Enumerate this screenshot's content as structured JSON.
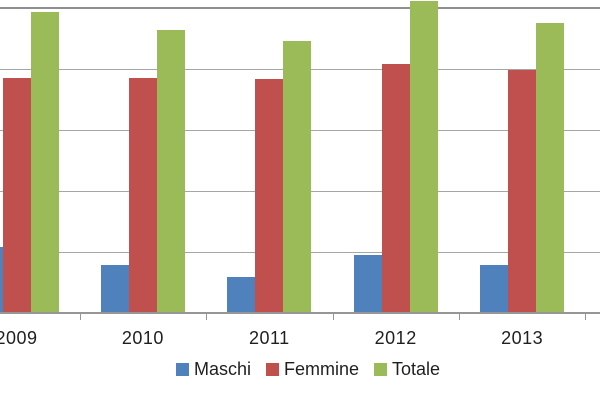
{
  "chart_data": {
    "type": "bar",
    "title": "",
    "xlabel": "",
    "ylabel": "",
    "categories": [
      "2009",
      "2010",
      "2011",
      "2012",
      "2013"
    ],
    "series": [
      {
        "name": "Maschi",
        "color": "#4F81BD",
        "values": [
          1.08,
          0.79,
          0.59,
          0.95,
          0.79
        ]
      },
      {
        "name": "Femmine",
        "color": "#C0504D",
        "values": [
          3.85,
          3.85,
          3.84,
          4.08,
          3.98
        ]
      },
      {
        "name": "Totale",
        "color": "#9BBB59",
        "values": [
          4.93,
          4.64,
          4.46,
          5.12,
          4.75
        ]
      }
    ],
    "ylim": [
      0,
      5.2
    ],
    "y_axis_labels_visible": false,
    "value_unit": "horizontal-gridline intervals (y-axis scale cropped out of view)",
    "grid": "horizontal",
    "legend_position": "bottom",
    "colors": {
      "background": "#FFFFFF",
      "gridline": "#A6A6A6",
      "top_gridline": "#8F8F8F",
      "axis_line": "#969696",
      "label_text": "#1F1F1F"
    }
  }
}
